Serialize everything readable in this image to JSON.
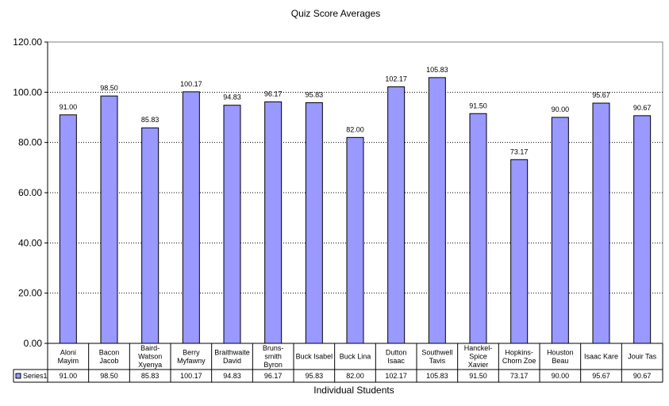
{
  "chart_data": {
    "type": "bar",
    "title": "Quiz Score Averages",
    "xlabel": "Individual Students",
    "ylabel": "",
    "ylim": [
      0,
      120
    ],
    "ytick_step": 20,
    "grid": true,
    "legend_placement": "data-table",
    "categories": [
      [
        "Aloni",
        "Mayim"
      ],
      [
        "Bacon",
        "Jacob"
      ],
      [
        "Baird-",
        "Watson",
        "Xyenya"
      ],
      [
        "Berry",
        "Myfawny"
      ],
      [
        "Braithwaite",
        "David"
      ],
      [
        "Bruns-",
        "smith",
        "Byron"
      ],
      [
        "Buck Isabel"
      ],
      [
        "Buck Lina"
      ],
      [
        "Dutton",
        "Isaac"
      ],
      [
        "Southwell",
        "Tavis"
      ],
      [
        "Hanckel-",
        "Spice",
        "Xavier"
      ],
      [
        "Hopkins-",
        "Chorn Zoe"
      ],
      [
        "Houston",
        "Beau"
      ],
      [
        "Isaac Kare"
      ],
      [
        "Jouir Tas"
      ]
    ],
    "series": [
      {
        "name": "Series1",
        "color": "#9999ff",
        "values": [
          91.0,
          98.5,
          85.83,
          100.17,
          94.83,
          96.17,
          95.83,
          82.0,
          102.17,
          105.83,
          91.5,
          73.17,
          90.0,
          95.67,
          90.67
        ],
        "labels": [
          "91.00",
          "98.50",
          "85.83",
          "100.17",
          "94.83",
          "96.17",
          "95.83",
          "82.00",
          "102.17",
          "105.83",
          "91.50",
          "73.17",
          "90.00",
          "95.67",
          "90.67"
        ]
      }
    ],
    "yticks": [
      "0.00",
      "20.00",
      "40.00",
      "60.00",
      "80.00",
      "100.00",
      "120.00"
    ]
  }
}
